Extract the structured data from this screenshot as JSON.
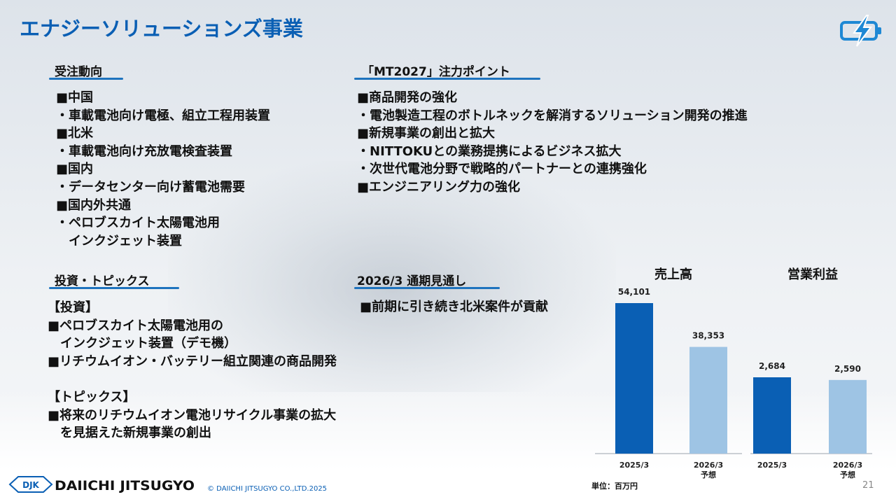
{
  "page": {
    "title": "エナジーソリューションズ事業",
    "page_number": "21",
    "copyright": "© DAIICHI JITSUGYO CO.,LTD.2025",
    "company_name": "DAIICHI JITSUGYO",
    "company_mark": "DJK",
    "brand_color": "#0a5fb4"
  },
  "orders": {
    "heading": "受注動向",
    "lines": [
      "■中国",
      "・車載電池向け電極、組立工程用装置",
      "■北米",
      "・車載電池向け充放電検査装置",
      "■国内",
      "・データセンター向け蓄電池需要",
      "■国内外共通",
      "・ペロブスカイト太陽電池用",
      "　インクジェット装置"
    ]
  },
  "focus": {
    "heading": "「MT2027」注力ポイント",
    "lines": [
      "■商品開発の強化",
      "・電池製造工程のボトルネックを解消するソリューション開発の推進",
      "■新規事業の創出と拡大",
      "・NITTOKUとの業務提携によるビジネス拡大",
      "・次世代電池分野で戦略的パートナーとの連携強化",
      "■エンジニアリング力の強化"
    ]
  },
  "invest": {
    "heading": "投資・トピックス",
    "lines": [
      "【投資】",
      "■ペロブスカイト太陽電池用の",
      "　インクジェット装置（デモ機）",
      "■リチウムイオン・バッテリー組立関連の商品開発",
      "",
      "【トピックス】",
      "■将来のリチウムイオン電池リサイクル事業の拡大",
      "　を見据えた新規事業の創出"
    ]
  },
  "outlook": {
    "heading": "2026/3 通期見通し",
    "lines": [
      "■前期に引き続き北米案件が貢献"
    ]
  },
  "chart_data": {
    "type": "bar",
    "unit_label": "単位：百万円",
    "colors": {
      "actual": "#0a5fb4",
      "forecast": "#9ec4e4"
    },
    "groups": [
      {
        "title": "売上高",
        "categories": [
          "2025/3",
          "2026/3\n予想"
        ],
        "values": [
          54101,
          38353
        ],
        "labels": [
          "54,101",
          "38,353"
        ],
        "kinds": [
          "actual",
          "forecast"
        ]
      },
      {
        "title": "営業利益",
        "categories": [
          "2025/3",
          "2026/3\n予想"
        ],
        "values": [
          2684,
          2590
        ],
        "labels": [
          "2,684",
          "2,590"
        ],
        "kinds": [
          "actual",
          "forecast"
        ]
      }
    ]
  }
}
